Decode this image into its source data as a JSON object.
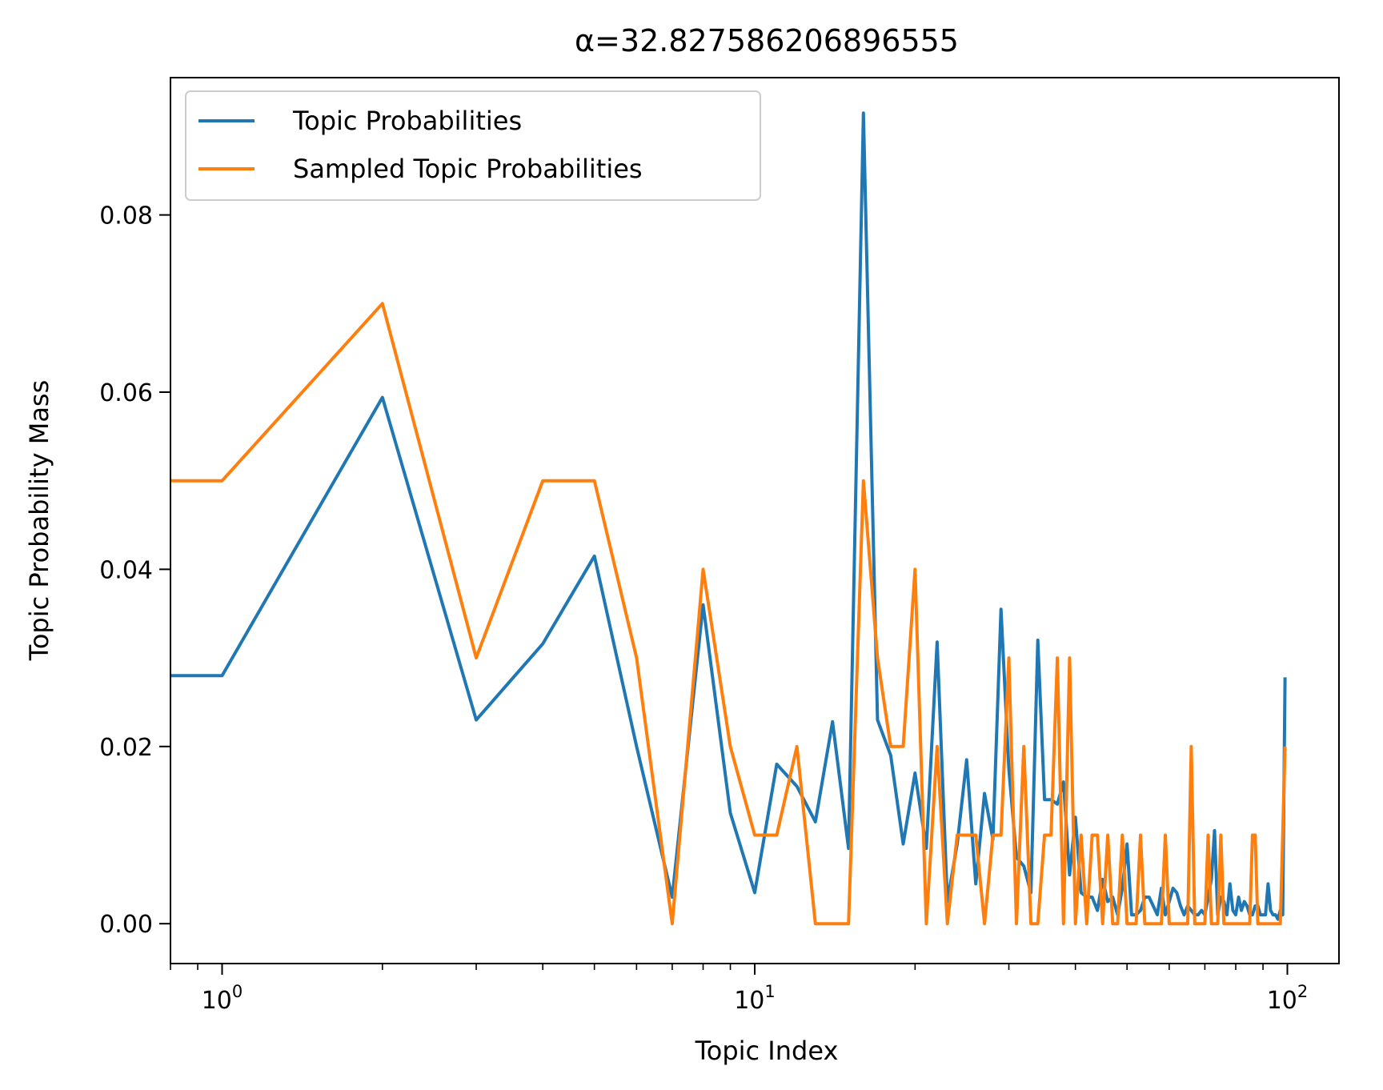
{
  "chart_data": {
    "type": "line",
    "title": "α=32.827586206896555",
    "xlabel": "Topic Index",
    "ylabel": "Topic Probability Mass",
    "xscale": "log",
    "xlim": [
      0.8,
      125
    ],
    "ylim": [
      -0.0045,
      0.0955
    ],
    "xticks": [
      {
        "value": 1,
        "base": "10",
        "exp": "0"
      },
      {
        "value": 10,
        "base": "10",
        "exp": "1"
      },
      {
        "value": 100,
        "base": "10",
        "exp": "2"
      }
    ],
    "yticks": [
      {
        "value": 0.0,
        "label": "0.00"
      },
      {
        "value": 0.02,
        "label": "0.02"
      },
      {
        "value": 0.04,
        "label": "0.04"
      },
      {
        "value": 0.06,
        "label": "0.06"
      },
      {
        "value": 0.08,
        "label": "0.08"
      }
    ],
    "grid": false,
    "legend_position": "upper-left",
    "series": [
      {
        "name": "Topic Probabilities",
        "color": "#1f77b4",
        "x": [
          0,
          1,
          2,
          3,
          4,
          5,
          6,
          7,
          8,
          9,
          10,
          11,
          12,
          13,
          14,
          15,
          16,
          17,
          18,
          19,
          20,
          21,
          22,
          23,
          24,
          25,
          26,
          27,
          28,
          29,
          30,
          31,
          32,
          33,
          34,
          35,
          36,
          37,
          38,
          39,
          40,
          41,
          42,
          43,
          44,
          45,
          46,
          47,
          48,
          49,
          50,
          51,
          52,
          53,
          54,
          55,
          56,
          57,
          58,
          59,
          60,
          61,
          62,
          63,
          64,
          65,
          66,
          67,
          68,
          69,
          70,
          71,
          72,
          73,
          74,
          75,
          76,
          77,
          78,
          79,
          80,
          81,
          82,
          83,
          84,
          85,
          86,
          87,
          88,
          89,
          90,
          91,
          92,
          93,
          94,
          95,
          96,
          97,
          98,
          99
        ],
        "values": [
          0.028,
          0.028,
          0.0594,
          0.023,
          0.0316,
          0.0415,
          0.02,
          0.003,
          0.036,
          0.0125,
          0.0035,
          0.018,
          0.0155,
          0.0115,
          0.0228,
          0.0085,
          0.0915,
          0.023,
          0.019,
          0.009,
          0.017,
          0.0085,
          0.0318,
          0.0025,
          0.009,
          0.0185,
          0.0045,
          0.0147,
          0.0095,
          0.0355,
          0.0175,
          0.0075,
          0.0065,
          0.0035,
          0.032,
          0.014,
          0.014,
          0.0135,
          0.016,
          0.0055,
          0.012,
          0.0035,
          0.003,
          0.003,
          0.0015,
          0.005,
          0.0025,
          0.003,
          0.001,
          0.004,
          0.009,
          0.001,
          0.001,
          0.0015,
          0.003,
          0.003,
          0.002,
          0.001,
          0.004,
          0.001,
          0.0025,
          0.004,
          0.0035,
          0.002,
          0.001,
          0.002,
          0.0015,
          0.001,
          0.001,
          0.0015,
          0.001,
          0.003,
          0.005,
          0.0105,
          0.001,
          0.003,
          0.0025,
          0.001,
          0.0045,
          0.0015,
          0.001,
          0.003,
          0.0015,
          0.0025,
          0.002,
          0.001,
          0.001,
          0.002,
          0.002,
          0.001,
          0.001,
          0.001,
          0.0045,
          0.0015,
          0.001,
          0.001,
          0.0005,
          0.0015,
          0.001,
          0.0278
        ]
      },
      {
        "name": "Sampled Topic Probabilities",
        "color": "#ff7f0e",
        "x": [
          0,
          1,
          2,
          3,
          4,
          5,
          6,
          7,
          8,
          9,
          10,
          11,
          12,
          13,
          14,
          15,
          16,
          17,
          18,
          19,
          20,
          21,
          22,
          23,
          24,
          25,
          26,
          27,
          28,
          29,
          30,
          31,
          32,
          33,
          34,
          35,
          36,
          37,
          38,
          39,
          40,
          41,
          42,
          43,
          44,
          45,
          46,
          47,
          48,
          49,
          50,
          51,
          52,
          53,
          54,
          55,
          56,
          57,
          58,
          59,
          60,
          61,
          62,
          63,
          64,
          65,
          66,
          67,
          68,
          69,
          70,
          71,
          72,
          73,
          74,
          75,
          76,
          77,
          78,
          79,
          80,
          81,
          82,
          83,
          84,
          85,
          86,
          87,
          88,
          89,
          90,
          91,
          92,
          93,
          94,
          95,
          96,
          97,
          98,
          99
        ],
        "values": [
          0.05,
          0.05,
          0.07,
          0.03,
          0.05,
          0.05,
          0.03,
          0.0,
          0.04,
          0.02,
          0.01,
          0.01,
          0.02,
          0.0,
          0.0,
          0.0,
          0.05,
          0.03,
          0.02,
          0.02,
          0.04,
          0.0,
          0.02,
          0.0,
          0.01,
          0.01,
          0.01,
          0.0,
          0.01,
          0.01,
          0.03,
          0.0,
          0.02,
          0.0,
          0.0,
          0.01,
          0.01,
          0.03,
          0.0,
          0.03,
          0.0,
          0.01,
          0.0,
          0.01,
          0.01,
          0.0,
          0.01,
          0.0,
          0.0,
          0.01,
          0.0,
          0.0,
          0.0,
          0.01,
          0.0,
          0.0,
          0.0,
          0.0,
          0.0,
          0.01,
          0.0,
          0.0,
          0.0,
          0.0,
          0.0,
          0.0,
          0.02,
          0.0,
          0.0,
          0.0,
          0.0,
          0.01,
          0.0,
          0.0,
          0.0,
          0.01,
          0.0,
          0.0,
          0.0,
          0.0,
          0.0,
          0.0,
          0.0,
          0.0,
          0.0,
          0.0,
          0.01,
          0.01,
          0.0,
          0.0,
          0.0,
          0.0,
          0.0,
          0.0,
          0.0,
          0.0,
          0.0,
          0.0,
          0.01,
          0.02
        ]
      }
    ]
  }
}
